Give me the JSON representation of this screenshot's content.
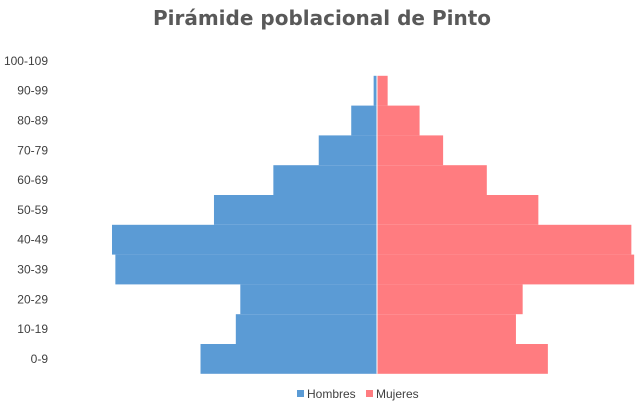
{
  "chart_data": {
    "type": "bar",
    "title": "Pirámide poblacional de Pinto",
    "categories": [
      "0-9",
      "10-19",
      "20-29",
      "30-39",
      "40-49",
      "50-59",
      "60-69",
      "70-79",
      "80-89",
      "90-99",
      "100-109"
    ],
    "series": [
      {
        "name": "Hombres",
        "color": "#5b9bd5",
        "values": [
          3150,
          2520,
          2440,
          4670,
          4730,
          2910,
          1850,
          1040,
          460,
          60,
          2
        ]
      },
      {
        "name": "Mujeres",
        "color": "#ff7c80",
        "values": [
          3050,
          2480,
          2600,
          4590,
          4540,
          2880,
          1960,
          1180,
          760,
          190,
          8
        ]
      }
    ],
    "legend_position": "bottom",
    "grid": false
  }
}
